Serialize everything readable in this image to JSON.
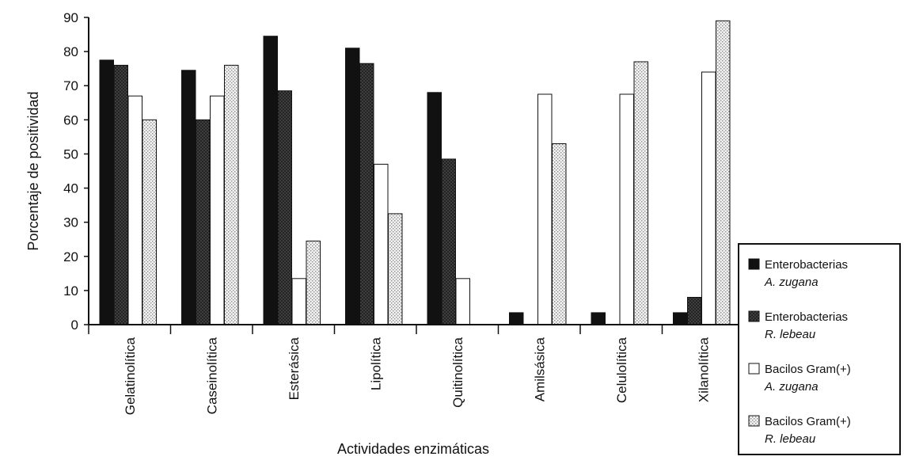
{
  "chart_data": {
    "type": "bar",
    "title": "",
    "xlabel": "Actividades enzimáticas",
    "ylabel": "Porcentaje de positividad",
    "ylim": [
      0,
      90
    ],
    "yticks": [
      0,
      10,
      20,
      30,
      40,
      50,
      60,
      70,
      80,
      90
    ],
    "grid": false,
    "legend_position": "bottom-right",
    "categories": [
      "Gelatinolítica",
      "Caseinolítica",
      "Esterásica",
      "Lipolítica",
      "Quitinolítica",
      "Amilsásica",
      "Celulolítica",
      "Xilanolítica"
    ],
    "series": [
      {
        "name": "Enterobacterias",
        "name_italic": "A. zugana",
        "pattern": "solid-black",
        "values": [
          77.5,
          74.5,
          84.5,
          81,
          68,
          3.5,
          3.5,
          3.5
        ]
      },
      {
        "name": "Enterobacterias",
        "name_italic": "R. lebeau",
        "pattern": "dark-crosshatch",
        "values": [
          76,
          60,
          68.5,
          76.5,
          48.5,
          0,
          0,
          8
        ]
      },
      {
        "name": "Bacilos Gram(+)",
        "name_italic": "A. zugana",
        "pattern": "white",
        "values": [
          67,
          67,
          13.5,
          47,
          13.5,
          67.5,
          67.5,
          74
        ]
      },
      {
        "name": "Bacilos Gram(+)",
        "name_italic": "R. lebeau",
        "pattern": "light-dotted",
        "values": [
          60,
          76,
          24.5,
          32.5,
          0,
          53,
          77,
          89
        ]
      }
    ]
  }
}
